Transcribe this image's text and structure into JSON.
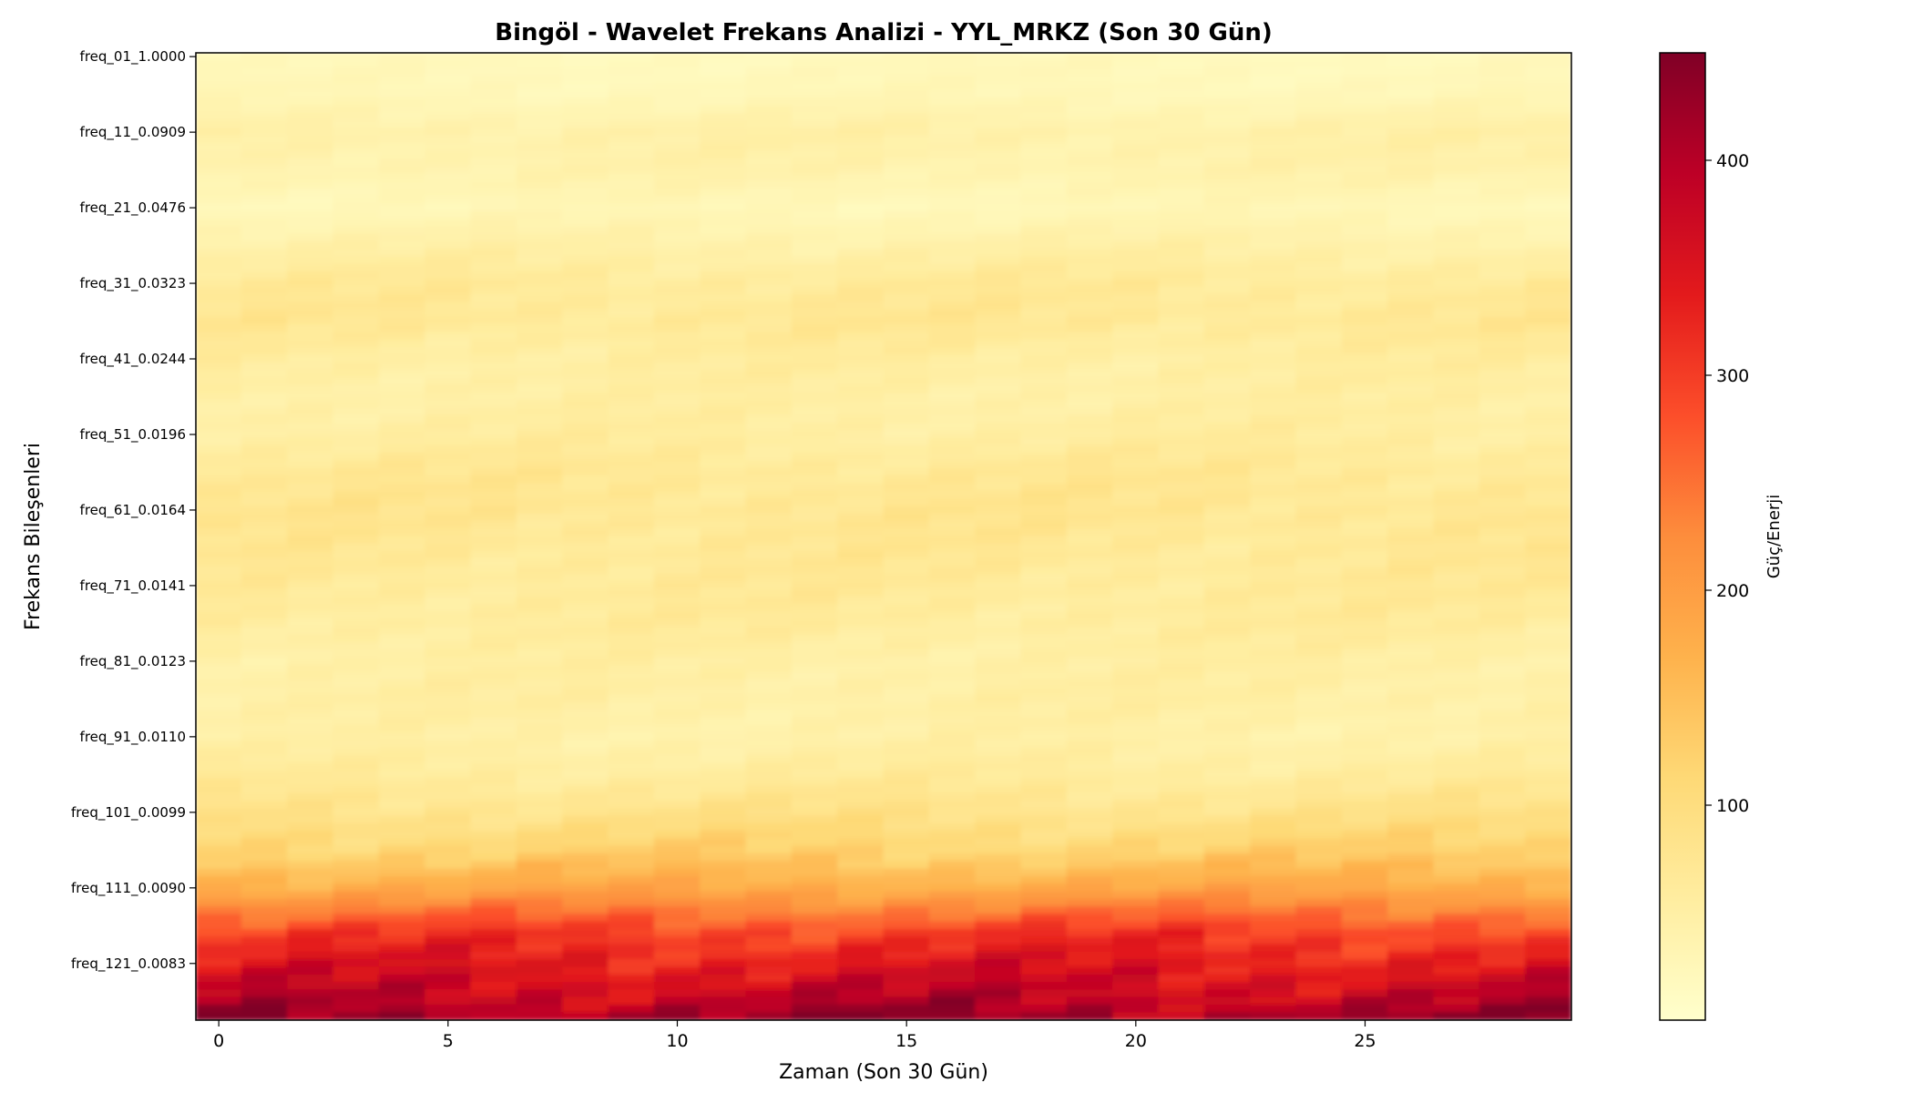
{
  "chart_data": {
    "type": "heatmap",
    "title": "Bingöl - Wavelet Frekans Analizi - YYL_MRKZ (Son 30 Gün)",
    "xlabel": "Zaman (Son 30 Gün)",
    "ylabel": "Frekans Bileşenleri",
    "colorbar_label": "Güç/Enerji",
    "colormap": "YlOrRd",
    "colors": [
      "#ffffcc",
      "#ffeda0",
      "#fed976",
      "#feb24c",
      "#fd8d3c",
      "#fc4e2a",
      "#e31a1c",
      "#bd0026",
      "#800026"
    ],
    "x": {
      "label": "Zaman (Son 30 Gün)",
      "n": 30,
      "range": [
        -0.5,
        29.5
      ],
      "ticks": [
        0,
        5,
        10,
        15,
        20,
        25
      ],
      "tick_labels": [
        "0",
        "5",
        "10",
        "15",
        "20",
        "25"
      ]
    },
    "y": {
      "label": "Frekans Bileşenleri",
      "n_rows": 128,
      "tick_rows": [
        0,
        10,
        20,
        30,
        40,
        50,
        60,
        70,
        80,
        90,
        100,
        110,
        120
      ],
      "tick_labels": [
        "freq_01_1.0000",
        "freq_11_0.0909",
        "freq_21_0.0476",
        "freq_31_0.0323",
        "freq_41_0.0244",
        "freq_51_0.0196",
        "freq_61_0.0164",
        "freq_71_0.0141",
        "freq_81_0.0123",
        "freq_91_0.0110",
        "freq_101_0.0099",
        "freq_111_0.0090",
        "freq_121_0.0083"
      ]
    },
    "colorbar": {
      "range": [
        0,
        450
      ],
      "ticks": [
        100,
        200,
        300,
        400
      ],
      "tick_labels": [
        "100",
        "200",
        "300",
        "400"
      ]
    },
    "row_profile": {
      "rows": [
        0,
        5,
        10,
        15,
        20,
        25,
        30,
        35,
        40,
        45,
        50,
        55,
        60,
        65,
        70,
        75,
        80,
        85,
        90,
        95,
        100,
        105,
        110,
        113,
        116,
        119,
        122,
        125,
        127
      ],
      "mean_values": [
        20,
        25,
        45,
        40,
        25,
        45,
        65,
        70,
        55,
        50,
        55,
        70,
        75,
        70,
        65,
        60,
        50,
        50,
        45,
        60,
        85,
        120,
        180,
        240,
        300,
        330,
        360,
        390,
        420
      ]
    },
    "grid": false
  }
}
